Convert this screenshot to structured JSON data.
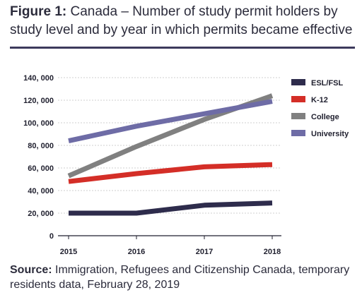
{
  "figure": {
    "title_lead": "Figure 1:",
    "title_rest": " Canada – Number of study permit holders by study level and by year in which permits became effective",
    "source_lead": "Source:",
    "source_rest": " Immigration, Refugees and Citizenship Canada, temporary residents data, February 28, 2019"
  },
  "chart_data": {
    "type": "line",
    "x": [
      2015,
      2016,
      2017,
      2018
    ],
    "x_tick_labels": [
      "2015",
      "2016",
      "2017",
      "2018"
    ],
    "ylim": [
      0,
      140000
    ],
    "y_ticks": [
      0,
      20000,
      40000,
      60000,
      80000,
      100000,
      120000,
      140000
    ],
    "y_tick_labels": [
      "0",
      "20, 000",
      "40, 000",
      "60, 000",
      "80, 000",
      "100, 000",
      "120, 000",
      "140, 000"
    ],
    "grid": "horizontal",
    "legend_position": "right",
    "series": [
      {
        "name": "ESL/FSL",
        "color": "#2e2c4c",
        "values": [
          20000,
          20000,
          27000,
          29000
        ]
      },
      {
        "name": "K-12",
        "color": "#d42e27",
        "values": [
          48000,
          55000,
          61000,
          63000
        ]
      },
      {
        "name": "College",
        "color": "#808080",
        "values": [
          53000,
          79000,
          103000,
          124000
        ]
      },
      {
        "name": "University",
        "color": "#6e6ca6",
        "values": [
          84000,
          97000,
          108000,
          119000
        ]
      }
    ]
  }
}
